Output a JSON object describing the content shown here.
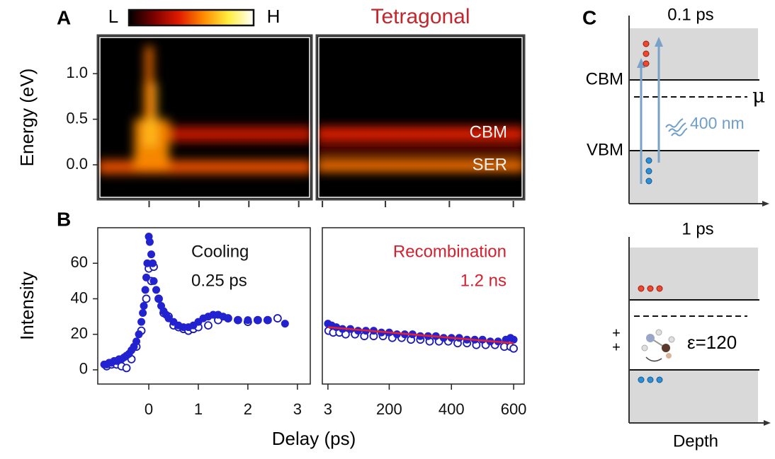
{
  "panel_labels": {
    "a": "A",
    "b": "B",
    "c": "C"
  },
  "colorbar": {
    "low": "L",
    "high": "H",
    "colormap": [
      "#000000",
      "#7a0000",
      "#e01a00",
      "#ff8c00",
      "#ffee40",
      "#ffffff"
    ]
  },
  "x_label": "Delay (ps)",
  "chart_data": [
    {
      "type": "heatmap",
      "ylabel": "Energy (eV)",
      "xlim": [
        -1.03,
        3.26
      ],
      "ylim": [
        -0.38,
        1.42
      ],
      "xticks": [
        0,
        1,
        2,
        3
      ],
      "yticks": [
        {
          "value": 0,
          "label": "0.0"
        },
        {
          "value": 0.5,
          "label": "0.5"
        },
        {
          "value": 1,
          "label": "1.0"
        }
      ],
      "features": [
        {
          "x": [
            -1.03,
            3.26
          ],
          "energy": [
            -0.1,
            0.05
          ],
          "intensity": 0.5
        },
        {
          "x": [
            0.3,
            3.26
          ],
          "energy": [
            0.25,
            0.42
          ],
          "intensity": 0.35
        },
        {
          "x": [
            -0.3,
            0.4
          ],
          "energy": [
            -0.05,
            0.5
          ],
          "intensity": 0.6
        },
        {
          "x": [
            -0.1,
            0.15
          ],
          "energy": [
            0.2,
            0.9
          ],
          "intensity": 0.7
        },
        {
          "x": [
            -0.08,
            0.08
          ],
          "energy": [
            0.5,
            1.3
          ],
          "intensity": 0.55
        }
      ]
    },
    {
      "type": "heatmap",
      "title": "Tetragonal",
      "title_color": "#c1272d",
      "xlim": [
        -15,
        634
      ],
      "ylim": [
        -0.38,
        1.42
      ],
      "xticks": [
        3,
        200,
        400,
        600
      ],
      "features": [
        {
          "x": [
            -15,
            634
          ],
          "energy": [
            -0.08,
            0.06
          ],
          "intensity": 0.55
        },
        {
          "x": [
            -15,
            634
          ],
          "energy": [
            0.25,
            0.42
          ],
          "intensity": 0.4
        },
        {
          "x": [
            -15,
            634
          ],
          "energy": [
            0.1,
            0.2
          ],
          "intensity": 0.15
        }
      ],
      "annotations": [
        {
          "text": "CBM",
          "energy": 0.35
        },
        {
          "text": "SER",
          "energy": -0.01
        }
      ],
      "annotation_color": "#f2f2f2"
    },
    {
      "type": "scatter",
      "ylabel": "Intensity",
      "xlim": [
        -1.03,
        3.26
      ],
      "ylim": [
        -8,
        80
      ],
      "xticks": [
        0,
        1,
        2,
        3
      ],
      "yticks": [
        0,
        20,
        40,
        60
      ],
      "annotations": [
        "Cooling",
        "0.25 ps"
      ],
      "annotation_color": "#111111",
      "series": [
        {
          "marker": "open",
          "color": "#1a1ab4",
          "x": [
            -0.85,
            -0.75,
            -0.65,
            -0.55,
            -0.45,
            -0.35,
            -0.25,
            -0.15,
            -0.05,
            0,
            0.05,
            0.1,
            0.2,
            0.3,
            0.4,
            0.5,
            0.6,
            0.7,
            0.8,
            0.9,
            1.0,
            1.2,
            1.4,
            1.6,
            1.8,
            2.0,
            2.2,
            2.4,
            2.6
          ],
          "values": [
            2,
            3,
            3,
            2,
            1,
            6,
            13,
            22,
            40,
            57,
            50,
            58,
            40,
            32,
            30,
            25,
            24,
            23,
            22,
            23,
            24,
            25,
            28,
            29,
            28,
            27,
            28,
            28,
            29
          ]
        },
        {
          "marker": "filled",
          "color": "#2222d0",
          "x": [
            -0.9,
            -0.85,
            -0.8,
            -0.75,
            -0.7,
            -0.65,
            -0.6,
            -0.55,
            -0.5,
            -0.45,
            -0.4,
            -0.35,
            -0.3,
            -0.25,
            -0.2,
            -0.15,
            -0.12,
            -0.1,
            -0.07,
            -0.05,
            -0.03,
            0,
            0.02,
            0.05,
            0.08,
            0.1,
            0.15,
            0.2,
            0.25,
            0.3,
            0.35,
            0.4,
            0.5,
            0.6,
            0.7,
            0.8,
            0.9,
            1.0,
            1.1,
            1.2,
            1.3,
            1.4,
            1.5,
            1.6,
            1.8,
            2.0,
            2.2,
            2.4,
            2.75
          ],
          "values": [
            3,
            3,
            4,
            4,
            5,
            5,
            6,
            6,
            7,
            8,
            9,
            11,
            13,
            16,
            20,
            27,
            32,
            36,
            45,
            52,
            60,
            75,
            72,
            65,
            60,
            50,
            45,
            40,
            36,
            33,
            31,
            29,
            27,
            25,
            24,
            24,
            25,
            27,
            29,
            30,
            31,
            31,
            30,
            29,
            28,
            28,
            28,
            28,
            26
          ]
        }
      ]
    },
    {
      "type": "scatter",
      "xlim": [
        -15,
        634
      ],
      "ylim": [
        -8,
        80
      ],
      "xticks": [
        3,
        200,
        400,
        600
      ],
      "annotations": [
        "Recombination",
        "1.2 ns"
      ],
      "annotation_color": "#d3202f",
      "series": [
        {
          "marker": "open",
          "color": "#1a1ab4",
          "x": [
            5,
            20,
            40,
            60,
            90,
            120,
            150,
            180,
            210,
            240,
            270,
            300,
            330,
            360,
            390,
            420,
            450,
            480,
            510,
            540,
            570,
            590,
            600
          ],
          "values": [
            22,
            21,
            21,
            20,
            20,
            19,
            19,
            19,
            18,
            18,
            17,
            17,
            16,
            16,
            16,
            15,
            15,
            14,
            14,
            14,
            13,
            13,
            12
          ]
        },
        {
          "marker": "filled",
          "color": "#2222d0",
          "x": [
            3,
            15,
            30,
            50,
            75,
            100,
            125,
            150,
            175,
            200,
            225,
            250,
            275,
            300,
            325,
            350,
            375,
            400,
            425,
            450,
            475,
            500,
            525,
            550,
            575,
            590,
            600
          ],
          "values": [
            26,
            25,
            24,
            23,
            23,
            22,
            22,
            22,
            21,
            21,
            20,
            20,
            20,
            19,
            19,
            19,
            18,
            18,
            18,
            17,
            17,
            17,
            16,
            16,
            17,
            18,
            17
          ]
        }
      ],
      "fit": {
        "color": "#e8202a",
        "x": [
          3,
          600
        ],
        "values": [
          24,
          15
        ]
      }
    }
  ],
  "diagram": {
    "top": {
      "title": "0.1 ps",
      "cbm": "CBM",
      "mu": "μ",
      "pump": "400 nm",
      "vbm": "VBM"
    },
    "bottom": {
      "title": "1 ps",
      "charges": [
        "+",
        "+"
      ],
      "dielectric": "ε=120"
    },
    "x_label": "Depth"
  }
}
